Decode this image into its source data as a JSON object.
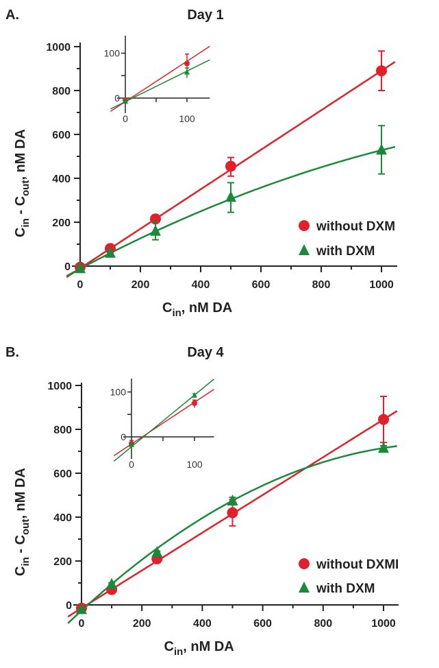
{
  "colors": {
    "red": "#e0202a",
    "green": "#1a8a3a",
    "axis": "#222222"
  },
  "chart_data": [
    {
      "type": "scatter",
      "panel_label": "A.",
      "title": "Day 1",
      "xlabel_main": "C",
      "xlabel_sub": "in",
      "xlabel_rest": ", nM DA",
      "ylabel_a": "C",
      "ylabel_a_sub": "in",
      "ylabel_mid": " - C",
      "ylabel_b_sub": "out",
      "ylabel_rest": ", nM DA",
      "xlim": [
        -50,
        1050
      ],
      "ylim": [
        -50,
        1050
      ],
      "xticks": [
        "0",
        "200",
        "400",
        "600",
        "800",
        "1000"
      ],
      "yticks": [
        "0",
        "200",
        "400",
        "600",
        "800",
        "1000"
      ],
      "legend": [
        "without DXM",
        "with DXM"
      ],
      "legend_position": "bottom-right",
      "series": [
        {
          "name": "without DXM",
          "marker": "circle",
          "color": "#e0202a",
          "x": [
            0,
            100,
            250,
            500,
            1000
          ],
          "y": [
            -5,
            80,
            215,
            455,
            890
          ],
          "err_low": [
            -15,
            70,
            200,
            410,
            800
          ],
          "err_high": [
            5,
            90,
            230,
            495,
            980
          ],
          "fit": [
            -10,
            0.9,
            0
          ]
        },
        {
          "name": "with DXM",
          "marker": "triangle",
          "color": "#1a8a3a",
          "x": [
            0,
            100,
            250,
            500,
            1000
          ],
          "y": [
            -10,
            60,
            160,
            315,
            530
          ],
          "err_low": [
            -20,
            50,
            120,
            245,
            420
          ],
          "err_high": [
            0,
            70,
            200,
            380,
            640
          ],
          "fit": [
            -12,
            0.73,
            -0.00019
          ]
        }
      ],
      "inset": {
        "xticks": [
          "0",
          "100"
        ],
        "yticks": [
          "0",
          "100"
        ],
        "series": [
          {
            "x": [
              0,
              100
            ],
            "y": [
              -5,
              77
            ],
            "err_low": [
              -10,
              58
            ],
            "err_high": [
              0,
              98
            ],
            "fit": [
              -8,
              0.9
            ]
          },
          {
            "x": [
              0,
              100
            ],
            "y": [
              -8,
              57
            ],
            "err_low": [
              -12,
              45
            ],
            "err_high": [
              -4,
              67
            ],
            "fit": [
              -8,
              0.68
            ]
          }
        ]
      }
    },
    {
      "type": "scatter",
      "panel_label": "B.",
      "title": "Day 4",
      "xlabel_main": "C",
      "xlabel_sub": "in",
      "xlabel_rest": ", nM DA",
      "ylabel_a": "C",
      "ylabel_a_sub": "in",
      "ylabel_mid": " - C",
      "ylabel_b_sub": "out",
      "ylabel_rest": ", nM DA",
      "xlim": [
        -50,
        1050
      ],
      "ylim": [
        -50,
        1050
      ],
      "xticks": [
        "0",
        "200",
        "400",
        "600",
        "800",
        "1000"
      ],
      "yticks": [
        "0",
        "200",
        "400",
        "600",
        "800",
        "1000"
      ],
      "legend": [
        "without DXMI",
        "with DXM"
      ],
      "legend_position": "bottom-right",
      "series": [
        {
          "name": "without DXMI",
          "marker": "circle",
          "color": "#e0202a",
          "x": [
            0,
            100,
            250,
            500,
            1000
          ],
          "y": [
            -15,
            70,
            210,
            420,
            845
          ],
          "err_low": [
            -25,
            60,
            200,
            360,
            740
          ],
          "err_high": [
            -5,
            80,
            220,
            480,
            950
          ],
          "fit": [
            -15,
            0.86,
            0
          ]
        },
        {
          "name": "with DXM",
          "marker": "triangle",
          "color": "#1a8a3a",
          "x": [
            0,
            100,
            250,
            500,
            1000
          ],
          "y": [
            -20,
            95,
            240,
            475,
            715
          ],
          "err_low": [
            -25,
            90,
            235,
            460,
            705
          ],
          "err_high": [
            -15,
            100,
            245,
            490,
            725
          ],
          "fit": [
            -26,
            1.263,
            -0.000522
          ]
        }
      ],
      "inset": {
        "xticks": [
          "0",
          "100"
        ],
        "yticks": [
          "0",
          "100"
        ],
        "series": [
          {
            "x": [
              0,
              100
            ],
            "y": [
              -15,
              75
            ],
            "err_low": [
              -25,
              65
            ],
            "err_high": [
              -8,
              82
            ],
            "fit": [
              -16,
              0.93
            ]
          },
          {
            "x": [
              0,
              100
            ],
            "y": [
              -18,
              92
            ],
            "err_low": [
              -22,
              88
            ],
            "err_high": [
              -14,
              96
            ],
            "fit": [
              -22,
              1.15
            ]
          }
        ]
      }
    }
  ]
}
